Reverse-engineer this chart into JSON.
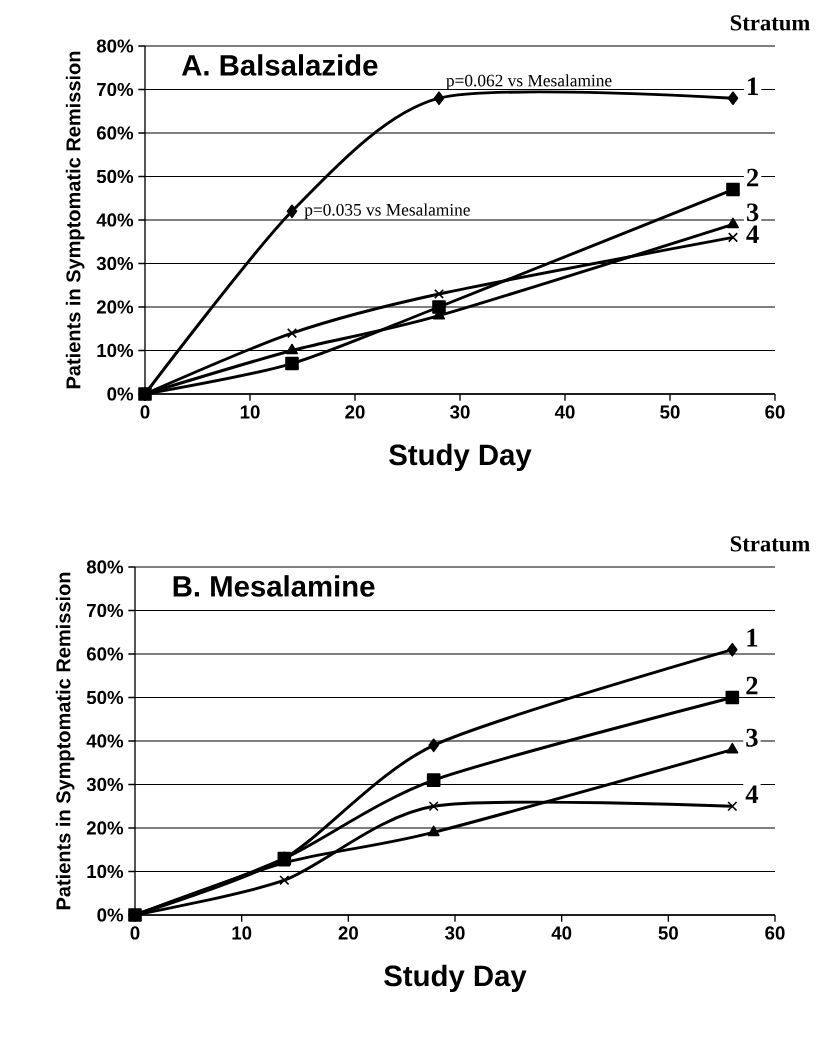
{
  "chart_data": [
    {
      "type": "line",
      "title": "A. Balsalazide",
      "legend_title": "Stratum",
      "xlabel": "Study Day",
      "ylabel": "Patients in Symptomatic Remission",
      "x": [
        0,
        14,
        28,
        56
      ],
      "xlim": [
        0,
        60
      ],
      "xticks": [
        0,
        10,
        20,
        30,
        40,
        50,
        60
      ],
      "ylim": [
        0,
        80
      ],
      "yticks": [
        {
          "value": 0,
          "label": "0%"
        },
        {
          "value": 10,
          "label": "10%"
        },
        {
          "value": 20,
          "label": "20%"
        },
        {
          "value": 30,
          "label": "30%"
        },
        {
          "value": 40,
          "label": "40%"
        },
        {
          "value": 50,
          "label": "50%"
        },
        {
          "value": 60,
          "label": "60%"
        },
        {
          "value": 70,
          "label": "70%"
        },
        {
          "value": 80,
          "label": "80%"
        }
      ],
      "grid": "y",
      "legend": false,
      "series": [
        {
          "name": "1",
          "color": "#000000",
          "marker": "diamond",
          "values": [
            0,
            42,
            68,
            68
          ]
        },
        {
          "name": "2",
          "color": "#000000",
          "marker": "square",
          "values": [
            0,
            7,
            20,
            47
          ]
        },
        {
          "name": "3",
          "color": "#000000",
          "marker": "triangle",
          "values": [
            0,
            10,
            18,
            39
          ]
        },
        {
          "name": "4",
          "color": "#000000",
          "marker": "cross",
          "values": [
            0,
            14,
            23,
            36
          ]
        }
      ],
      "annotations": [
        {
          "text": "p=0.062 vs Mesalamine",
          "x": 28,
          "y": 68
        },
        {
          "text": "p=0.035 vs Mesalamine",
          "x": 14,
          "y": 42
        }
      ]
    },
    {
      "type": "line",
      "title": "B. Mesalamine",
      "legend_title": "Stratum",
      "xlabel": "Study Day",
      "ylabel": "Patients in Symptomatic Remission",
      "x": [
        0,
        14,
        28,
        56
      ],
      "xlim": [
        0,
        60
      ],
      "xticks": [
        0,
        10,
        20,
        30,
        40,
        50,
        60
      ],
      "ylim": [
        0,
        80
      ],
      "yticks": [
        {
          "value": 0,
          "label": "0%"
        },
        {
          "value": 10,
          "label": "10%"
        },
        {
          "value": 20,
          "label": "20%"
        },
        {
          "value": 30,
          "label": "30%"
        },
        {
          "value": 40,
          "label": "40%"
        },
        {
          "value": 50,
          "label": "50%"
        },
        {
          "value": 60,
          "label": "60%"
        },
        {
          "value": 70,
          "label": "70%"
        },
        {
          "value": 80,
          "label": "80%"
        }
      ],
      "grid": "y",
      "legend": false,
      "series": [
        {
          "name": "1",
          "color": "#000000",
          "marker": "diamond",
          "values": [
            0,
            13,
            39,
            61
          ]
        },
        {
          "name": "2",
          "color": "#000000",
          "marker": "square",
          "values": [
            0,
            13,
            31,
            50
          ]
        },
        {
          "name": "3",
          "color": "#000000",
          "marker": "triangle",
          "values": [
            0,
            12,
            19,
            38
          ]
        },
        {
          "name": "4",
          "color": "#000000",
          "marker": "cross",
          "values": [
            0,
            8,
            25,
            25
          ]
        }
      ]
    }
  ]
}
